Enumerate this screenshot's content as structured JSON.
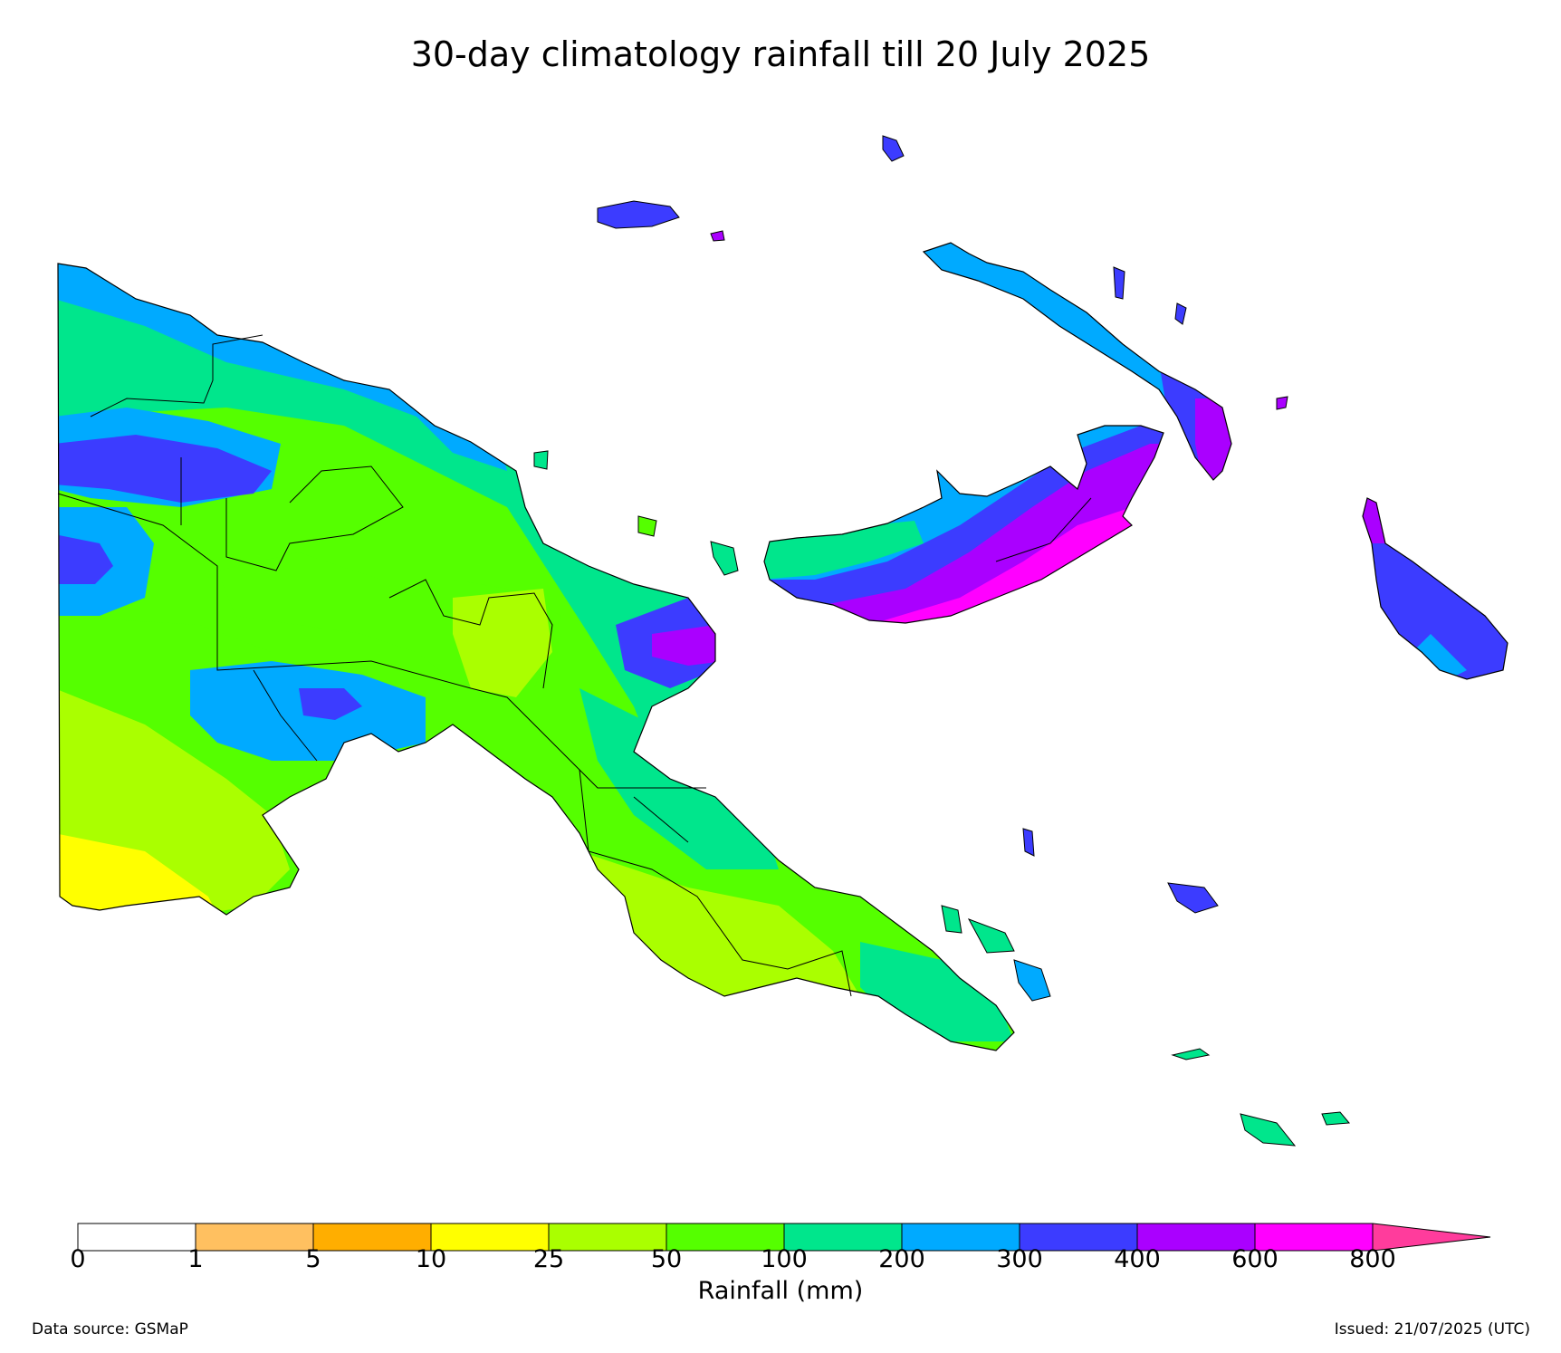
{
  "title": "30-day climatology rainfall till 20 July 2025",
  "colorbar": {
    "label": "Rainfall (mm)",
    "ticks": [
      "0",
      "1",
      "5",
      "10",
      "25",
      "50",
      "100",
      "200",
      "300",
      "400",
      "600",
      "800"
    ],
    "colors": [
      "#ffffff",
      "#ffc060",
      "#ffae00",
      "#ffff00",
      "#aaff00",
      "#55ff00",
      "#00e68c",
      "#00aaff",
      "#3c3cff",
      "#aa00ff",
      "#ff00ff",
      "#ff3c9c"
    ],
    "extend": "max"
  },
  "footer": {
    "source": "Data source: GSMaP",
    "issued": "Issued: 21/07/2025 (UTC)"
  },
  "map": {
    "region": "Papua New Guinea",
    "rain_classes": [
      "0-1",
      "1-5",
      "5-10",
      "10-25",
      "25-50",
      "50-100",
      "100-200",
      "200-300",
      "300-400",
      "400-600",
      "600-800",
      ">800"
    ]
  }
}
